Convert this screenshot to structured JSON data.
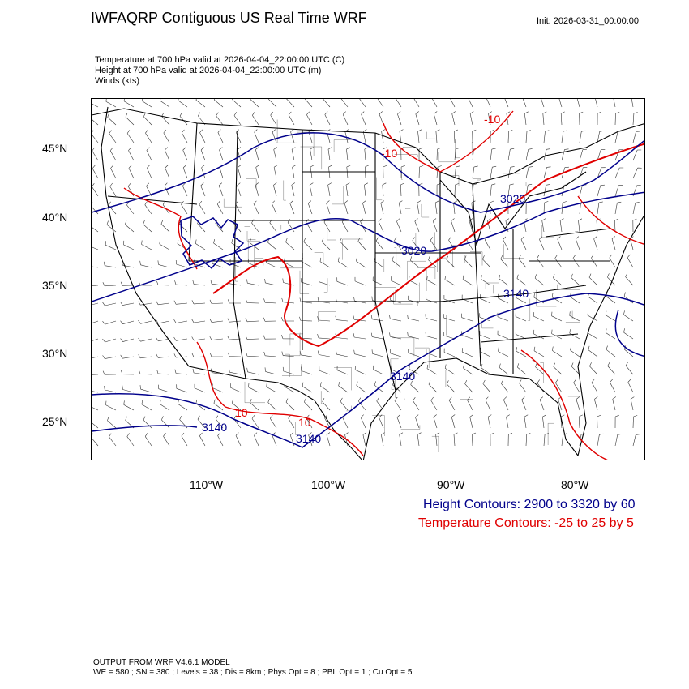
{
  "title": "IWFAQRP Contiguous US Real Time WRF",
  "init": "Init: 2026-03-31_00:00:00",
  "subtitle_lines": [
    "Temperature at 700 hPa valid at 2026-04-04_22:00:00 UTC   (C)",
    "Height at 700 hPa valid at 2026-04-04_22:00:00 UTC   (m)",
    "Winds   (kts)"
  ],
  "latitude_labels": [
    "45°N",
    "40°N",
    "35°N",
    "30°N",
    "25°N"
  ],
  "longitude_labels": [
    "110°W",
    "100°W",
    "90°W",
    "80°W"
  ],
  "height_contour_labels": [
    "3020",
    "3020",
    "3140",
    "3140",
    "3140",
    "3140"
  ],
  "temperature_contour_labels": [
    "-10",
    "-10",
    "10",
    "10"
  ],
  "legend": {
    "height": "Height Contours: 2900 to 3320 by 60",
    "temperature": "Temperature Contours: -25 to 25 by 5"
  },
  "colors": {
    "height": "#00008b",
    "temperature": "#e00000",
    "boundaries": "#000000"
  },
  "footer": {
    "line1": "OUTPUT FROM WRF V4.6.1 MODEL",
    "line2": "WE = 580 ; SN = 380 ; Levels = 38 ; Dis = 8km ; Phys Opt = 8 ; PBL Opt = 1 ; Cu Opt = 5"
  }
}
